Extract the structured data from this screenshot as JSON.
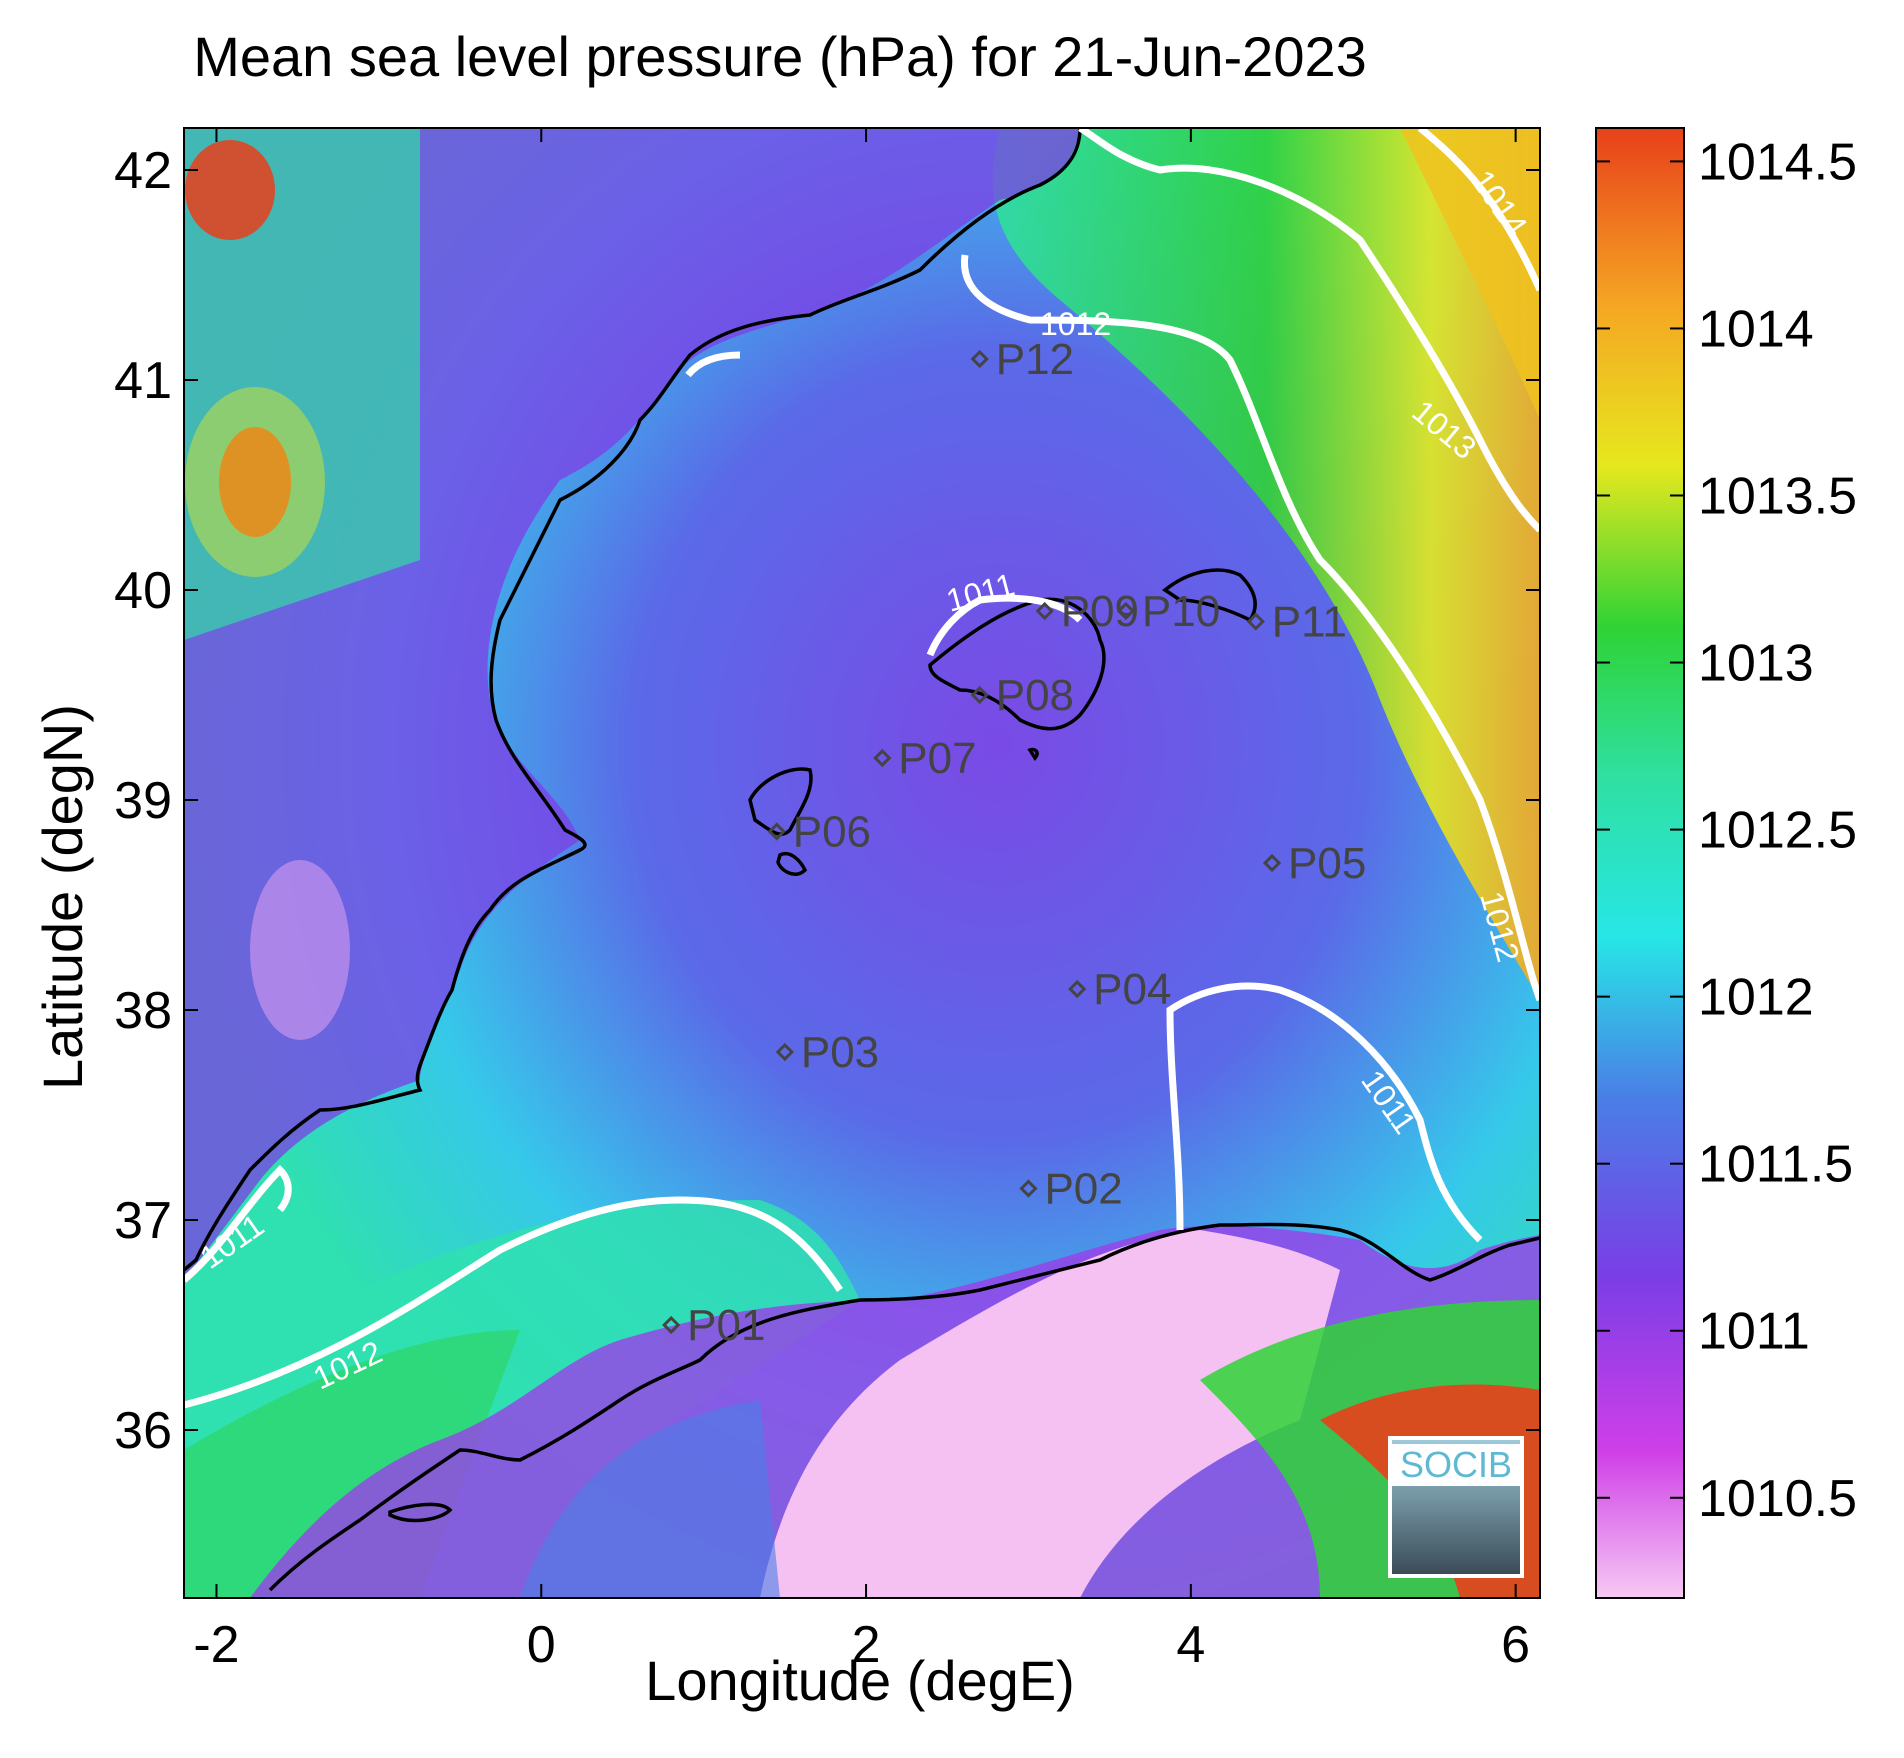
{
  "title": "Mean sea level pressure (hPa) for 21-Jun-2023",
  "xlabel": "Longitude (degE)",
  "ylabel": "Latitude (degN)",
  "x_ticks": [
    "-2",
    "0",
    "2",
    "4",
    "6"
  ],
  "y_ticks": [
    "42",
    "41",
    "40",
    "39",
    "38",
    "37",
    "36"
  ],
  "colorbar_ticks": [
    "1014.5",
    "1014",
    "1013.5",
    "1013",
    "1012.5",
    "1012",
    "1011.5",
    "1011",
    "1010.5"
  ],
  "logo_text": "SOCIB",
  "colors": {
    "high": "#e8401a",
    "orange": "#f5a623",
    "yellow": "#e6e81e",
    "green": "#2fd336",
    "cyan": "#27e6e6",
    "blue": "#4a7ee6",
    "purple": "#7a3ee6",
    "magenta": "#d23ee6",
    "pink": "#f4c1f2",
    "contour": "#ffffff",
    "coast": "#000000"
  },
  "chart_data": {
    "type": "heatmap",
    "title": "Mean sea level pressure (hPa) for 21-Jun-2023",
    "xlabel": "Longitude (degE)",
    "ylabel": "Latitude (degN)",
    "xlim": [
      -2.2,
      6.15
    ],
    "ylim": [
      35.2,
      42.2
    ],
    "colorbar_range": [
      1010.2,
      1014.6
    ],
    "contours": [
      "1011",
      "1012",
      "1013",
      "1014"
    ],
    "stations": [
      {
        "name": "P01",
        "lon": 0.8,
        "lat": 36.5
      },
      {
        "name": "P02",
        "lon": 3.0,
        "lat": 37.15
      },
      {
        "name": "P03",
        "lon": 1.5,
        "lat": 37.8
      },
      {
        "name": "P04",
        "lon": 3.3,
        "lat": 38.1
      },
      {
        "name": "P05",
        "lon": 4.5,
        "lat": 38.7
      },
      {
        "name": "P06",
        "lon": 1.45,
        "lat": 38.85
      },
      {
        "name": "P07",
        "lon": 2.1,
        "lat": 39.2
      },
      {
        "name": "P08",
        "lon": 2.7,
        "lat": 39.5
      },
      {
        "name": "P09",
        "lon": 3.1,
        "lat": 39.9
      },
      {
        "name": "P10",
        "lon": 3.6,
        "lat": 39.9
      },
      {
        "name": "P11",
        "lon": 4.4,
        "lat": 39.85
      },
      {
        "name": "P12",
        "lon": 2.7,
        "lat": 41.1
      }
    ]
  }
}
